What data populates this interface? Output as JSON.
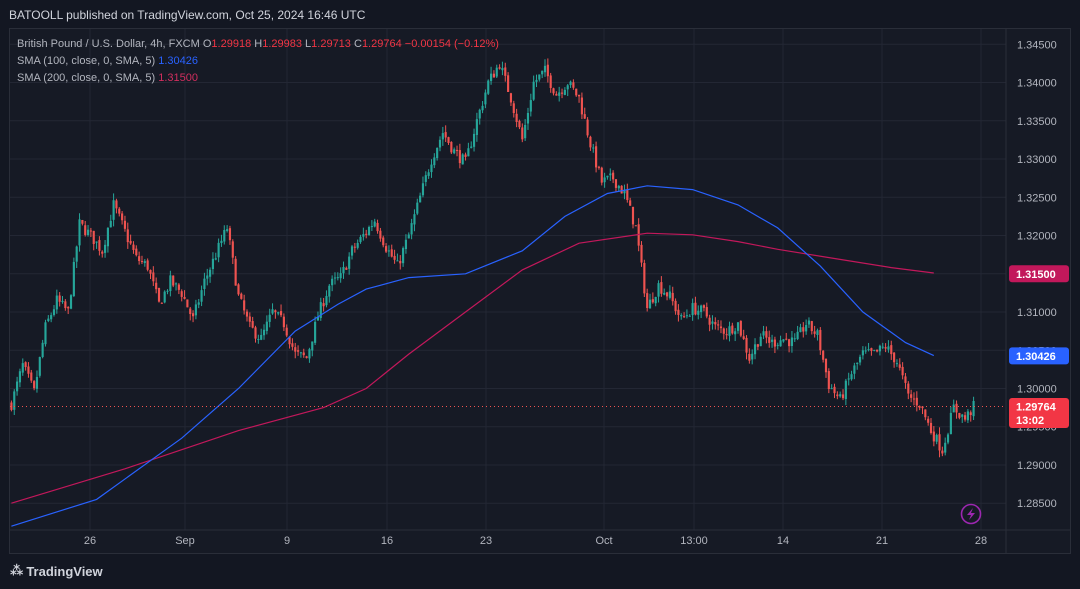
{
  "publisher": "BATOOLL published on TradingView.com, Oct 25, 2024 16:46 UTC",
  "legend": {
    "symbol": "British Pound / U.S. Dollar, 4h, FXCM",
    "o_label": "O",
    "o": "1.29918",
    "h_label": "H",
    "h": "1.29983",
    "l_label": "L",
    "l": "1.29713",
    "c_label": "C",
    "c": "1.29764",
    "change": "−0.00154 (−0.12%)",
    "sma100_label": "SMA (100, close, 0, SMA, 5)",
    "sma100_value": "1.30426",
    "sma200_label": "SMA (200, close, 0, SMA, 5)",
    "sma200_value": "1.31500"
  },
  "brand": {
    "name": "TradingView",
    "logo_icon": "tradingview-logo-icon"
  },
  "colors": {
    "up": "#26a69a",
    "down": "#ef5350",
    "sma100": "#2962ff",
    "sma200": "#c2185b",
    "bg": "#161a25",
    "grid": "#232734"
  },
  "chart_data": {
    "type": "candlestick",
    "ylim": [
      1.2815,
      1.347
    ],
    "y_ticks": [
      "1.34500",
      "1.34000",
      "1.33500",
      "1.33000",
      "1.32500",
      "1.32000",
      "1.31500",
      "1.31000",
      "1.30500",
      "1.30000",
      "1.29500",
      "1.29000",
      "1.28500"
    ],
    "x_ticks": [
      "26",
      "Sep",
      "9",
      "16",
      "23",
      "Oct",
      "13:00",
      "14",
      "21",
      "28"
    ],
    "last_price": "1.29764",
    "countdown": "13:02",
    "price_badges": [
      {
        "name": "sma200",
        "value": "1.31500"
      },
      {
        "name": "sma100",
        "value": "1.30426"
      },
      {
        "name": "last",
        "value": "1.29764",
        "sub": "13:02"
      }
    ],
    "close_path": [
      [
        0,
        1.298
      ],
      [
        4,
        1.303
      ],
      [
        8,
        1.2995
      ],
      [
        12,
        1.308
      ],
      [
        16,
        1.3115
      ],
      [
        20,
        1.31
      ],
      [
        24,
        1.3215
      ],
      [
        28,
        1.32
      ],
      [
        32,
        1.318
      ],
      [
        36,
        1.324
      ],
      [
        40,
        1.3205
      ],
      [
        44,
        1.317
      ],
      [
        48,
        1.316
      ],
      [
        52,
        1.311
      ],
      [
        56,
        1.314
      ],
      [
        60,
        1.3125
      ],
      [
        64,
        1.309
      ],
      [
        68,
        1.314
      ],
      [
        72,
        1.3175
      ],
      [
        76,
        1.321
      ],
      [
        80,
        1.312
      ],
      [
        84,
        1.308
      ],
      [
        88,
        1.3065
      ],
      [
        92,
        1.31
      ],
      [
        96,
        1.3085
      ],
      [
        100,
        1.3045
      ],
      [
        104,
        1.304
      ],
      [
        108,
        1.3095
      ],
      [
        112,
        1.3135
      ],
      [
        116,
        1.3145
      ],
      [
        120,
        1.318
      ],
      [
        124,
        1.32
      ],
      [
        128,
        1.322
      ],
      [
        132,
        1.3185
      ],
      [
        136,
        1.316
      ],
      [
        140,
        1.32
      ],
      [
        144,
        1.325
      ],
      [
        148,
        1.33
      ],
      [
        152,
        1.3335
      ],
      [
        156,
        1.331
      ],
      [
        160,
        1.3295
      ],
      [
        164,
        1.335
      ],
      [
        168,
        1.34
      ],
      [
        172,
        1.3425
      ],
      [
        176,
        1.338
      ],
      [
        180,
        1.3325
      ],
      [
        184,
        1.34
      ],
      [
        188,
        1.3415
      ],
      [
        192,
        1.3385
      ],
      [
        196,
        1.34
      ],
      [
        200,
        1.338
      ],
      [
        204,
        1.332
      ],
      [
        208,
        1.327
      ],
      [
        212,
        1.3275
      ],
      [
        216,
        1.3255
      ],
      [
        220,
        1.321
      ],
      [
        224,
        1.3105
      ],
      [
        228,
        1.3135
      ],
      [
        232,
        1.312
      ],
      [
        236,
        1.309
      ],
      [
        240,
        1.3105
      ],
      [
        244,
        1.31
      ],
      [
        248,
        1.308
      ],
      [
        252,
        1.3075
      ],
      [
        256,
        1.3085
      ],
      [
        260,
        1.304
      ],
      [
        264,
        1.307
      ],
      [
        268,
        1.306
      ],
      [
        272,
        1.3065
      ],
      [
        276,
        1.306
      ],
      [
        280,
        1.3085
      ],
      [
        284,
        1.307
      ],
      [
        288,
        1.3005
      ],
      [
        292,
        1.2985
      ],
      [
        296,
        1.302
      ],
      [
        300,
        1.3045
      ],
      [
        304,
        1.3045
      ],
      [
        308,
        1.3055
      ],
      [
        312,
        1.3035
      ],
      [
        316,
        1.299
      ],
      [
        320,
        1.298
      ],
      [
        324,
        1.2945
      ],
      [
        328,
        1.292
      ],
      [
        332,
        1.2975
      ],
      [
        336,
        1.296
      ],
      [
        339,
        1.2976
      ]
    ],
    "sma100": [
      [
        0,
        1.282
      ],
      [
        30,
        1.2855
      ],
      [
        60,
        1.2935
      ],
      [
        80,
        1.3
      ],
      [
        100,
        1.3075
      ],
      [
        115,
        1.311
      ],
      [
        125,
        1.313
      ],
      [
        140,
        1.3145
      ],
      [
        160,
        1.315
      ],
      [
        180,
        1.318
      ],
      [
        195,
        1.3225
      ],
      [
        210,
        1.3255
      ],
      [
        224,
        1.3265
      ],
      [
        240,
        1.326
      ],
      [
        256,
        1.324
      ],
      [
        270,
        1.321
      ],
      [
        285,
        1.316
      ],
      [
        300,
        1.31
      ],
      [
        315,
        1.306
      ],
      [
        325,
        1.3043
      ]
    ],
    "sma200": [
      [
        0,
        1.285
      ],
      [
        40,
        1.2895
      ],
      [
        80,
        1.2945
      ],
      [
        110,
        1.2975
      ],
      [
        125,
        1.3
      ],
      [
        140,
        1.3045
      ],
      [
        160,
        1.31
      ],
      [
        180,
        1.3155
      ],
      [
        200,
        1.319
      ],
      [
        224,
        1.3203
      ],
      [
        240,
        1.3201
      ],
      [
        256,
        1.3192
      ],
      [
        270,
        1.3182
      ],
      [
        290,
        1.317
      ],
      [
        310,
        1.3158
      ],
      [
        325,
        1.3151
      ]
    ],
    "n_candles": 340
  }
}
